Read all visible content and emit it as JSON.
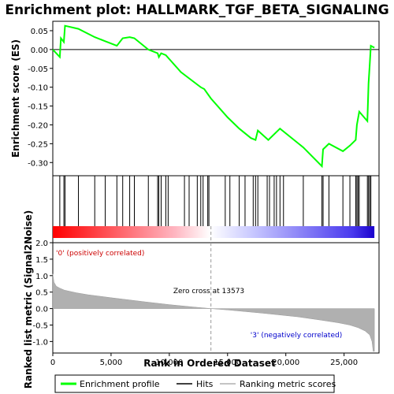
{
  "chart_data": {
    "type": "line",
    "title": "Enrichment plot: HALLMARK_TGF_BETA_SIGNALING",
    "panels": {
      "enrichment": {
        "ylabel": "Enrichment score (ES)",
        "ylim": [
          -0.335,
          0.075
        ],
        "yticks": [
          0.05,
          0.0,
          -0.05,
          -0.1,
          -0.15,
          -0.2,
          -0.25,
          -0.3
        ],
        "ytick_labels": [
          "0.05",
          "0.00",
          "-0.05",
          "-0.10",
          "-0.15",
          "-0.20",
          "-0.25",
          "-0.30"
        ],
        "line_color": "#00ff00",
        "es_profile": {
          "x": [
            0,
            600,
            700,
            950,
            1050,
            2200,
            3600,
            4500,
            5500,
            6000,
            6600,
            7000,
            8200,
            9000,
            9100,
            9300,
            9700,
            11000,
            12700,
            13000,
            13573,
            15000,
            16000,
            17000,
            17400,
            17600,
            18500,
            19500,
            21500,
            23100,
            23200,
            23700,
            24900,
            25500,
            26000,
            26100,
            26300,
            27000,
            27100,
            27200,
            27300,
            27600
          ],
          "y": [
            0.0,
            -0.02,
            0.03,
            0.02,
            0.063,
            0.055,
            0.033,
            0.022,
            0.01,
            0.03,
            0.033,
            0.03,
            0.0,
            -0.01,
            -0.02,
            -0.01,
            -0.015,
            -0.06,
            -0.1,
            -0.105,
            -0.13,
            -0.18,
            -0.21,
            -0.235,
            -0.24,
            -0.215,
            -0.24,
            -0.21,
            -0.26,
            -0.31,
            -0.265,
            -0.25,
            -0.27,
            -0.255,
            -0.24,
            -0.2,
            -0.165,
            -0.19,
            -0.09,
            -0.04,
            0.01,
            0.005
          ]
        }
      },
      "hits": {
        "positions": [
          600,
          950,
          1050,
          2200,
          3600,
          4500,
          5500,
          6000,
          6600,
          7000,
          8200,
          9000,
          9100,
          9300,
          9700,
          9900,
          11300,
          11700,
          12400,
          12700,
          12900,
          13300,
          13400,
          14800,
          15200,
          16000,
          16500,
          17200,
          17400,
          17600,
          18400,
          18600,
          19000,
          19200,
          19500,
          19800,
          21500,
          23100,
          23200,
          23700,
          24900,
          25500,
          26000,
          26100,
          26200,
          26300,
          27000,
          27100,
          27200,
          27300
        ]
      },
      "metric": {
        "ylabel": "Ranked list metric (Signal2Noise)",
        "ylim": [
          -1.35,
          2.0
        ],
        "yticks": [
          2.0,
          1.5,
          1.0,
          0.5,
          0.0,
          -0.5,
          -1.0
        ],
        "ytick_labels": [
          "2.0",
          "1.5",
          "1.0",
          "0.5",
          "0.0",
          "-0.5",
          "-1.0"
        ],
        "fill_color": "#b0b0b0",
        "curve": {
          "x": [
            0,
            100,
            300,
            600,
            1000,
            2000,
            3000,
            5000,
            8000,
            10000,
            12000,
            13573,
            15000,
            18000,
            21000,
            23000,
            24500,
            25500,
            26200,
            26800,
            27200,
            27400,
            27500,
            27600
          ],
          "y": [
            1.05,
            0.8,
            0.68,
            0.62,
            0.56,
            0.48,
            0.42,
            0.33,
            0.2,
            0.12,
            0.05,
            0.0,
            -0.04,
            -0.14,
            -0.25,
            -0.35,
            -0.43,
            -0.5,
            -0.58,
            -0.68,
            -0.8,
            -1.0,
            -1.3,
            -1.3
          ]
        }
      }
    },
    "xlabel": "Rank in Ordered Dataset",
    "xlim": [
      0,
      28000
    ],
    "xticks": [
      0,
      5000,
      10000,
      15000,
      20000,
      25000
    ],
    "xtick_labels": [
      "0",
      "5,000",
      "10,000",
      "15,000",
      "20,000",
      "25,000"
    ],
    "n_genes": 27600,
    "zero_cross": 13573,
    "annotations": {
      "positive_label": "'0' (positively correlated)",
      "positive_color": "#cc0000",
      "negative_label": "'3' (negatively correlated)",
      "negative_color": "#0000cc",
      "zero_cross_label": "Zero cross at 13573"
    },
    "legend": {
      "placement": "bottom",
      "entries": [
        {
          "label": "Enrichment profile",
          "color": "#00ff00"
        },
        {
          "label": "Hits",
          "color": "#000000"
        },
        {
          "label": "Ranking metric scores",
          "color": "#b0b0b0"
        }
      ]
    }
  }
}
